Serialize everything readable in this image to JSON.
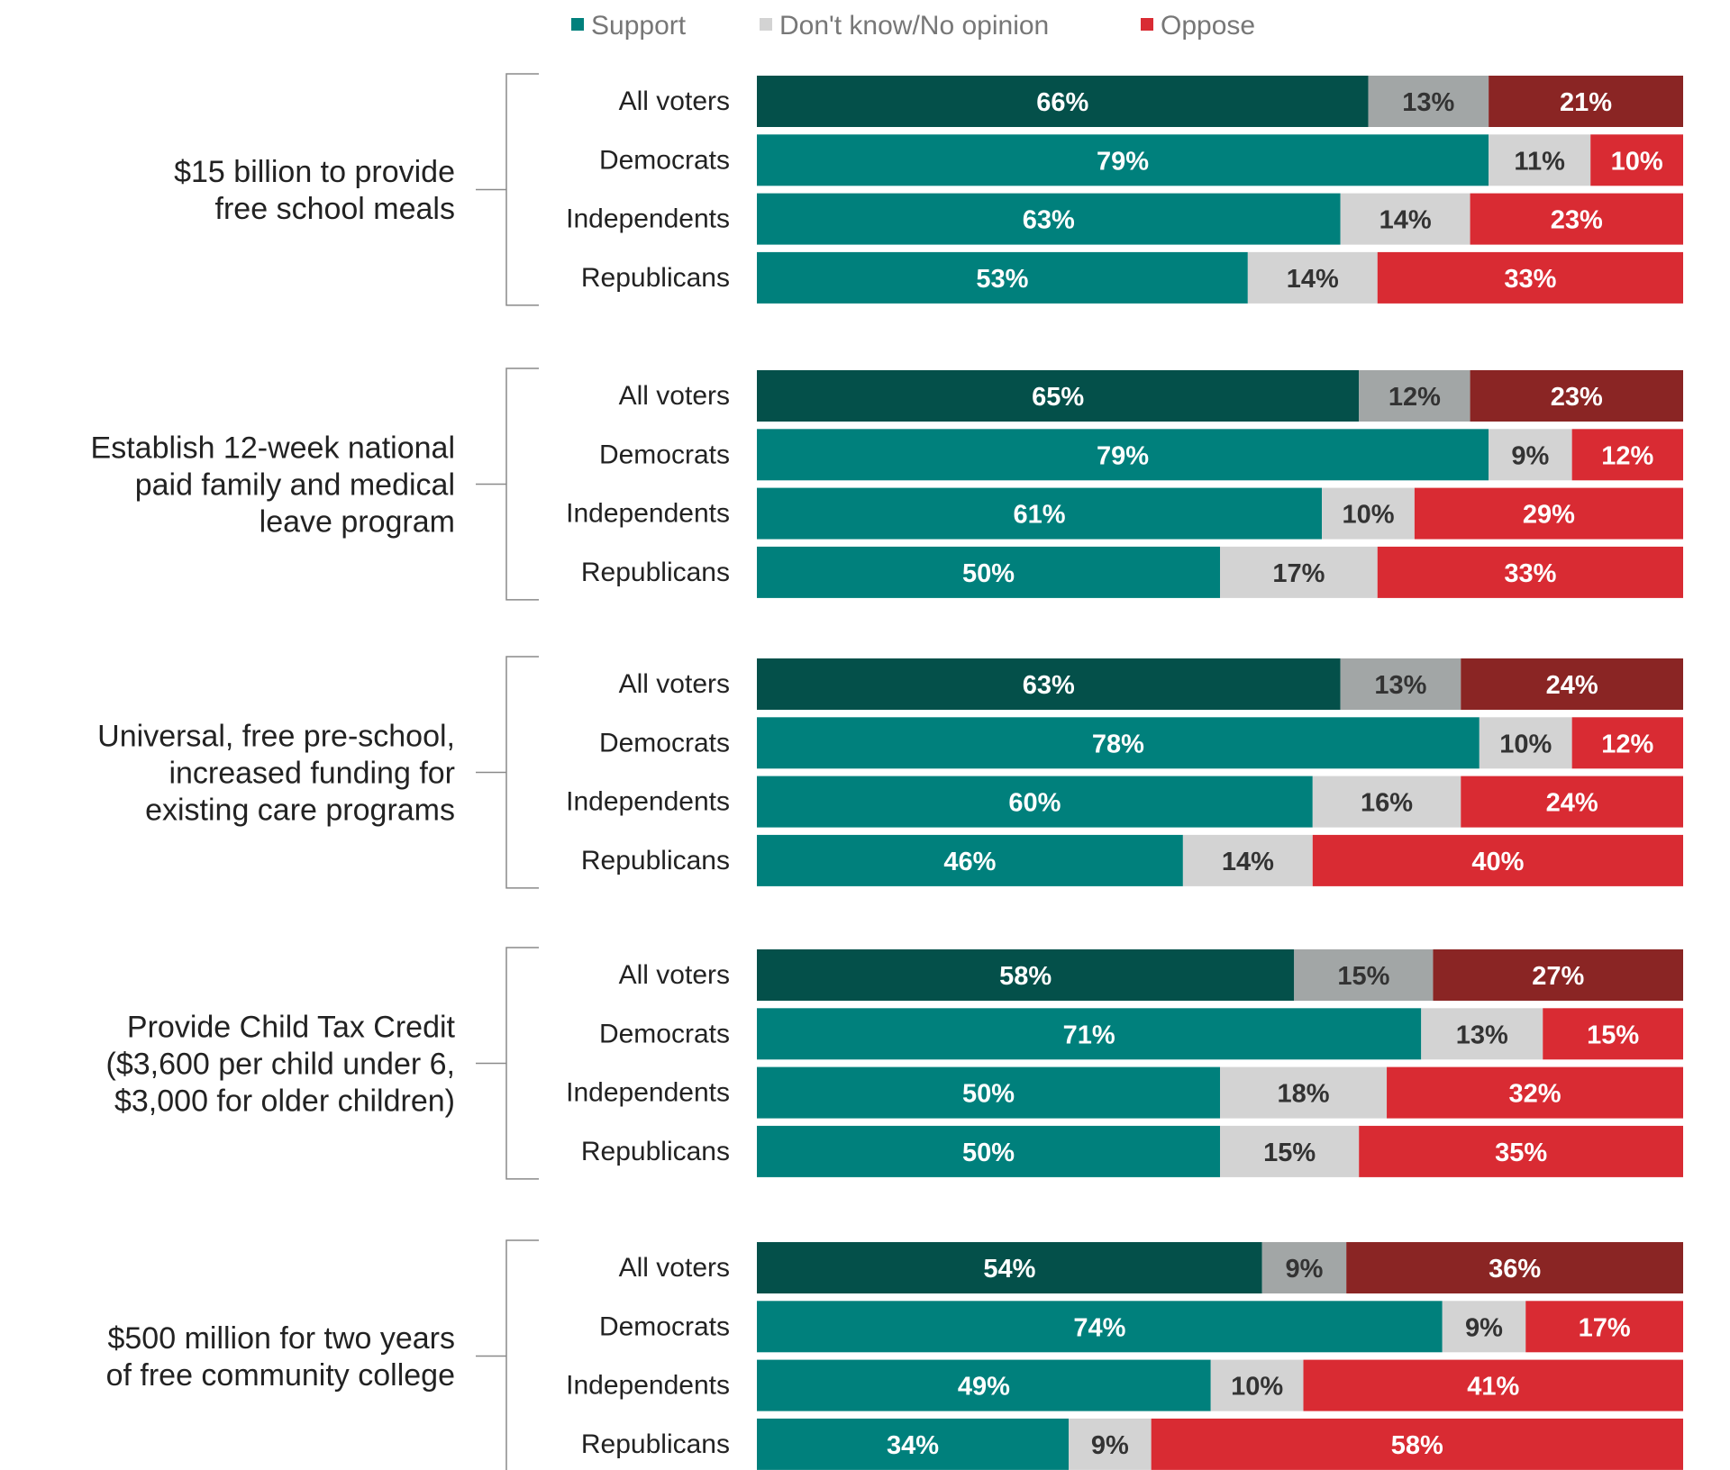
{
  "chart_data": {
    "type": "bar",
    "orientation": "horizontal",
    "stacked": true,
    "legend_position": "top-center",
    "xlim": [
      0,
      100
    ],
    "unit": "%",
    "series": [
      {
        "key": "support",
        "name": "Support"
      },
      {
        "key": "dk",
        "name": "Don't know/No opinion"
      },
      {
        "key": "oppose",
        "name": "Oppose"
      }
    ],
    "colors": {
      "support": "#00807c",
      "support_all": "#04504a",
      "dk": "#d3d3d3",
      "dk_all": "#a2a6a6",
      "oppose": "#d92b33",
      "oppose_all": "#8a2524"
    },
    "groups": [
      {
        "question": [
          "$15 billion to provide",
          "free school meals"
        ],
        "rows": [
          {
            "label": "All voters",
            "support": 66,
            "dk": 13,
            "oppose": 21
          },
          {
            "label": "Democrats",
            "support": 79,
            "dk": 11,
            "oppose": 10
          },
          {
            "label": "Independents",
            "support": 63,
            "dk": 14,
            "oppose": 23
          },
          {
            "label": "Republicans",
            "support": 53,
            "dk": 14,
            "oppose": 33
          }
        ]
      },
      {
        "question": [
          "Establish 12-week national",
          "paid family and medical",
          "leave program"
        ],
        "rows": [
          {
            "label": "All voters",
            "support": 65,
            "dk": 12,
            "oppose": 23
          },
          {
            "label": "Democrats",
            "support": 79,
            "dk": 9,
            "oppose": 12
          },
          {
            "label": "Independents",
            "support": 61,
            "dk": 10,
            "oppose": 29
          },
          {
            "label": "Republicans",
            "support": 50,
            "dk": 17,
            "oppose": 33
          }
        ]
      },
      {
        "question": [
          "Universal, free pre-school,",
          "increased funding for",
          "existing care programs"
        ],
        "rows": [
          {
            "label": "All voters",
            "support": 63,
            "dk": 13,
            "oppose": 24
          },
          {
            "label": "Democrats",
            "support": 78,
            "dk": 10,
            "oppose": 12
          },
          {
            "label": "Independents",
            "support": 60,
            "dk": 16,
            "oppose": 24
          },
          {
            "label": "Republicans",
            "support": 46,
            "dk": 14,
            "oppose": 40
          }
        ]
      },
      {
        "question": [
          "Provide Child Tax Credit",
          "($3,600 per child under 6,",
          "$3,000 for older children)"
        ],
        "rows": [
          {
            "label": "All voters",
            "support": 58,
            "dk": 15,
            "oppose": 27
          },
          {
            "label": "Democrats",
            "support": 71,
            "dk": 13,
            "oppose": 15
          },
          {
            "label": "Independents",
            "support": 50,
            "dk": 18,
            "oppose": 32
          },
          {
            "label": "Republicans",
            "support": 50,
            "dk": 15,
            "oppose": 35
          }
        ]
      },
      {
        "question": [
          "$500 million for two years",
          "of free community college"
        ],
        "rows": [
          {
            "label": "All voters",
            "support": 54,
            "dk": 9,
            "oppose": 36
          },
          {
            "label": "Democrats",
            "support": 74,
            "dk": 9,
            "oppose": 17
          },
          {
            "label": "Independents",
            "support": 49,
            "dk": 10,
            "oppose": 41
          },
          {
            "label": "Republicans",
            "support": 34,
            "dk": 9,
            "oppose": 58
          }
        ]
      }
    ]
  }
}
